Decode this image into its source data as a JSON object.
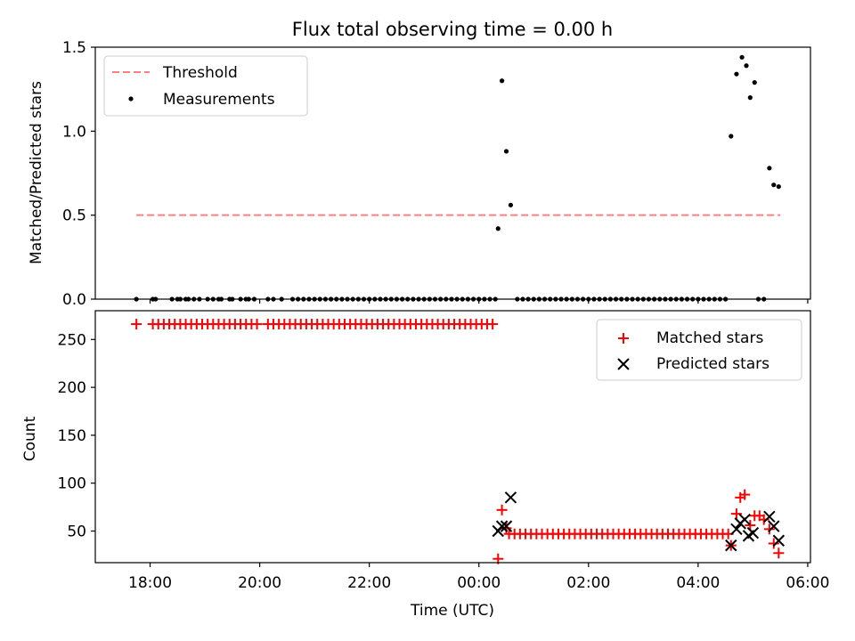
{
  "title": "Flux total observing time = 0.00 h",
  "chart_data": [
    {
      "type": "scatter",
      "panel": "top",
      "ylabel": "Matched/Predicted stars",
      "ylim": [
        0,
        1.5
      ],
      "yticks": [
        0.0,
        0.5,
        1.0,
        1.5
      ],
      "ytick_labels": [
        "0.0",
        "0.5",
        "1.0",
        "1.5"
      ],
      "xlim_hours": [
        17.0,
        30.05
      ],
      "threshold": {
        "label": "Threshold",
        "value": 0.5,
        "x_start": 17.75,
        "x_end": 29.5,
        "color": "#ff7f7f"
      },
      "measurements": {
        "label": "Measurements",
        "color": "#000000",
        "points": [
          [
            17.75,
            0
          ],
          [
            18.05,
            0
          ],
          [
            18.1,
            0
          ],
          [
            18.4,
            0
          ],
          [
            18.5,
            0
          ],
          [
            18.55,
            0
          ],
          [
            18.65,
            0
          ],
          [
            18.7,
            0
          ],
          [
            18.8,
            0
          ],
          [
            18.9,
            0
          ],
          [
            19.05,
            0
          ],
          [
            19.15,
            0
          ],
          [
            19.25,
            0
          ],
          [
            19.3,
            0
          ],
          [
            19.45,
            0
          ],
          [
            19.5,
            0
          ],
          [
            19.65,
            0
          ],
          [
            19.75,
            0
          ],
          [
            19.8,
            0
          ],
          [
            19.9,
            0
          ],
          [
            20.15,
            0
          ],
          [
            20.25,
            0
          ],
          [
            20.4,
            0
          ],
          [
            20.6,
            0
          ],
          [
            20.7,
            0
          ],
          [
            20.8,
            0
          ],
          [
            20.9,
            0
          ],
          [
            21.0,
            0
          ],
          [
            21.1,
            0
          ],
          [
            21.2,
            0
          ],
          [
            21.3,
            0
          ],
          [
            21.4,
            0
          ],
          [
            21.5,
            0
          ],
          [
            21.6,
            0
          ],
          [
            21.7,
            0
          ],
          [
            21.8,
            0
          ],
          [
            21.9,
            0
          ],
          [
            22.0,
            0
          ],
          [
            22.1,
            0
          ],
          [
            22.2,
            0
          ],
          [
            22.3,
            0
          ],
          [
            22.4,
            0
          ],
          [
            22.5,
            0
          ],
          [
            22.6,
            0
          ],
          [
            22.7,
            0
          ],
          [
            22.8,
            0
          ],
          [
            22.9,
            0
          ],
          [
            23.0,
            0
          ],
          [
            23.1,
            0
          ],
          [
            23.2,
            0
          ],
          [
            23.3,
            0
          ],
          [
            23.4,
            0
          ],
          [
            23.5,
            0
          ],
          [
            23.6,
            0
          ],
          [
            23.7,
            0
          ],
          [
            23.8,
            0
          ],
          [
            23.9,
            0
          ],
          [
            24.0,
            0
          ],
          [
            24.1,
            0
          ],
          [
            24.2,
            0
          ],
          [
            24.3,
            0
          ],
          [
            24.35,
            0.42
          ],
          [
            24.42,
            1.3
          ],
          [
            24.5,
            0.88
          ],
          [
            24.58,
            0.56
          ],
          [
            24.7,
            0
          ],
          [
            24.8,
            0
          ],
          [
            24.9,
            0
          ],
          [
            25.0,
            0
          ],
          [
            25.1,
            0
          ],
          [
            25.2,
            0
          ],
          [
            25.3,
            0
          ],
          [
            25.4,
            0
          ],
          [
            25.5,
            0
          ],
          [
            25.6,
            0
          ],
          [
            25.7,
            0
          ],
          [
            25.8,
            0
          ],
          [
            25.9,
            0
          ],
          [
            26.0,
            0
          ],
          [
            26.1,
            0
          ],
          [
            26.2,
            0
          ],
          [
            26.3,
            0
          ],
          [
            26.4,
            0
          ],
          [
            26.5,
            0
          ],
          [
            26.6,
            0
          ],
          [
            26.7,
            0
          ],
          [
            26.8,
            0
          ],
          [
            26.9,
            0
          ],
          [
            27.0,
            0
          ],
          [
            27.1,
            0
          ],
          [
            27.2,
            0
          ],
          [
            27.3,
            0
          ],
          [
            27.4,
            0
          ],
          [
            27.5,
            0
          ],
          [
            27.6,
            0
          ],
          [
            27.7,
            0
          ],
          [
            27.8,
            0
          ],
          [
            27.9,
            0
          ],
          [
            28.0,
            0
          ],
          [
            28.1,
            0
          ],
          [
            28.2,
            0
          ],
          [
            28.3,
            0
          ],
          [
            28.4,
            0
          ],
          [
            28.5,
            0
          ],
          [
            28.6,
            0.97
          ],
          [
            28.7,
            1.34
          ],
          [
            28.8,
            1.44
          ],
          [
            28.88,
            1.39
          ],
          [
            28.95,
            1.2
          ],
          [
            29.03,
            1.29
          ],
          [
            29.1,
            0
          ],
          [
            29.2,
            0
          ],
          [
            29.3,
            0.78
          ],
          [
            29.38,
            0.68
          ],
          [
            29.47,
            0.67
          ]
        ]
      }
    },
    {
      "type": "scatter",
      "panel": "bottom",
      "xlabel": "Time (UTC)",
      "ylabel": "Count",
      "ylim": [
        17,
        280
      ],
      "yticks": [
        50,
        100,
        150,
        200,
        250
      ],
      "ytick_labels": [
        "50",
        "100",
        "150",
        "200",
        "250"
      ],
      "xlim_hours": [
        17.0,
        30.05
      ],
      "xticks_hours": [
        18,
        20,
        22,
        24,
        26,
        28,
        30
      ],
      "xtick_labels": [
        "18:00",
        "20:00",
        "22:00",
        "00:00",
        "02:00",
        "04:00",
        "06:00"
      ],
      "series": [
        {
          "name": "Matched stars",
          "marker": "plus",
          "color": "#ff0000",
          "segments": [
            {
              "from": 17.75,
              "to": 24.3,
              "step": 0.1,
              "value": 266,
              "skip": [
                [
                  17.8,
                  18.0
                ],
                [
                  20.0,
                  20.1
                ],
                [
                  21.5,
                  21.55
                ]
              ]
            },
            {
              "from": 24.55,
              "to": 28.55,
              "step": 0.1,
              "value": 47
            }
          ],
          "points": [
            [
              24.35,
              21
            ],
            [
              24.42,
              72
            ],
            [
              24.5,
              53
            ],
            [
              28.6,
              35
            ],
            [
              28.7,
              68
            ],
            [
              28.77,
              85
            ],
            [
              28.85,
              88
            ],
            [
              28.95,
              56
            ],
            [
              29.03,
              66
            ],
            [
              29.12,
              66
            ],
            [
              29.2,
              62
            ],
            [
              29.3,
              52
            ],
            [
              29.38,
              37
            ],
            [
              29.47,
              27
            ]
          ]
        },
        {
          "name": "Predicted stars",
          "marker": "x",
          "color": "#000000",
          "points": [
            [
              24.35,
              50
            ],
            [
              24.42,
              55
            ],
            [
              24.5,
              55
            ],
            [
              24.58,
              85
            ],
            [
              28.6,
              35
            ],
            [
              28.7,
              52
            ],
            [
              28.77,
              58
            ],
            [
              28.85,
              62
            ],
            [
              28.92,
              45
            ],
            [
              29.0,
              48
            ],
            [
              29.3,
              65
            ],
            [
              29.38,
              55
            ],
            [
              29.47,
              40
            ]
          ]
        }
      ]
    }
  ]
}
